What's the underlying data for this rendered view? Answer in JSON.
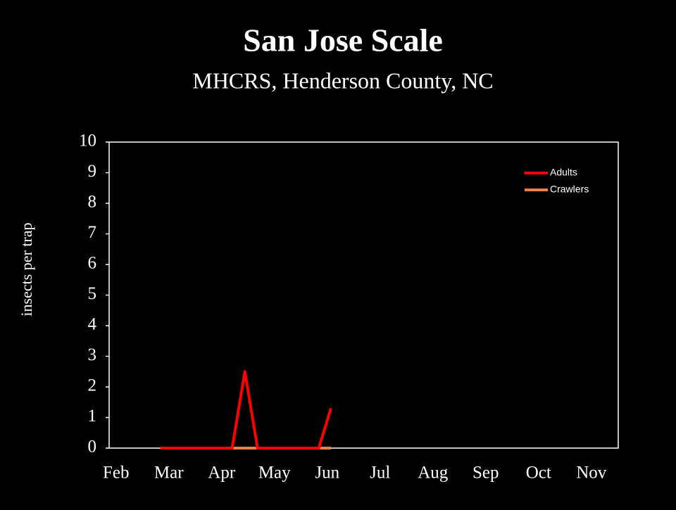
{
  "chart_data": {
    "type": "line",
    "title": "San Jose Scale",
    "subtitle": "MHCRS, Henderson County, NC",
    "y_label": "insects per trap",
    "x": [
      2.84,
      4.2,
      4.44,
      4.68,
      5.84,
      6.07
    ],
    "series": [
      {
        "name": "Adults",
        "color": "#ff0000",
        "values": [
          0,
          0,
          2.5,
          0,
          0,
          1.3
        ]
      },
      {
        "name": "Crawlers",
        "color": "#e8804a",
        "values": [
          0,
          0,
          0,
          0,
          0,
          0
        ]
      }
    ],
    "xlim": [
      1.87,
      11.51
    ],
    "xticks": [
      {
        "value": 2,
        "label": "Feb"
      },
      {
        "value": 3,
        "label": "Mar"
      },
      {
        "value": 4,
        "label": "Apr"
      },
      {
        "value": 5,
        "label": "May"
      },
      {
        "value": 6,
        "label": "Jun"
      },
      {
        "value": 7,
        "label": "Jul"
      },
      {
        "value": 8,
        "label": "Aug"
      },
      {
        "value": 9,
        "label": "Sep"
      },
      {
        "value": 10,
        "label": "Oct"
      },
      {
        "value": 11,
        "label": "Nov"
      }
    ],
    "ylim": [
      0,
      10
    ],
    "yticks": [
      0,
      1,
      2,
      3,
      4,
      5,
      6,
      7,
      8,
      9,
      10
    ],
    "legend": "upper right"
  }
}
